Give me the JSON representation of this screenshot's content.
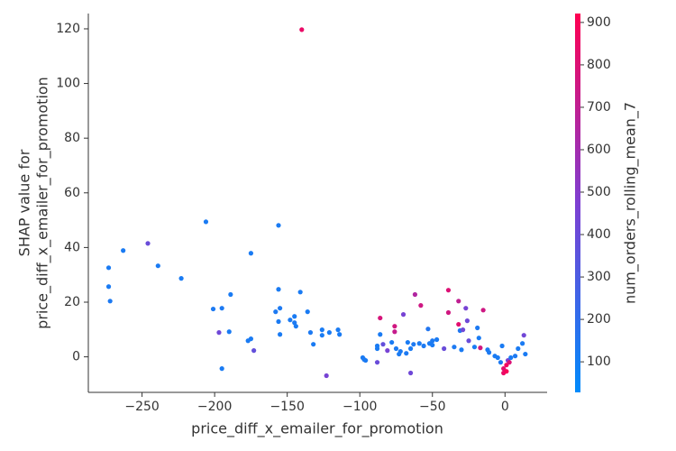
{
  "chart_data": {
    "type": "scatter",
    "xlabel": "price_diff_x_emailer_for_promotion",
    "ylabel": [
      "SHAP value for",
      "price_diff_x_emailer_for_promotion"
    ],
    "colorbar_label": "num_orders_rolling_mean_7",
    "colormap": [
      "#008bfb",
      "#7e3fd2",
      "#ff0052"
    ],
    "xlim": [
      -287,
      29
    ],
    "ylim": [
      -13,
      125.6
    ],
    "clim": [
      28,
      921
    ],
    "xticks": [
      {
        "value": -250,
        "label": "−250"
      },
      {
        "value": -200,
        "label": "−200"
      },
      {
        "value": -150,
        "label": "−150"
      },
      {
        "value": -100,
        "label": "−100"
      },
      {
        "value": -50,
        "label": "−50"
      },
      0
    ],
    "yticks": [
      0,
      20,
      40,
      60,
      80,
      100,
      120
    ],
    "cticks": [
      100,
      200,
      300,
      400,
      500,
      600,
      700,
      800,
      900
    ],
    "x": [
      -140,
      -273,
      -273,
      -272,
      -263,
      -246,
      -239,
      -223,
      -206,
      -201,
      -195,
      -197,
      -195,
      -190,
      -189,
      -175,
      -175,
      -173,
      -177,
      -156,
      -156,
      -158,
      -156,
      -155,
      -155,
      -148,
      -145,
      -145,
      -144,
      -141,
      -136,
      -134,
      -132,
      -126,
      -126,
      -123,
      -121,
      -115,
      -114,
      -98,
      -97,
      -96,
      -88,
      -88,
      -88,
      -86,
      -86,
      -84,
      -81,
      -78,
      -76,
      -76,
      -75,
      -73,
      -72,
      -70,
      -68,
      -67,
      -65,
      -65,
      -63,
      -62,
      -59,
      -58,
      -56,
      -53,
      -52,
      -50,
      -50,
      -47,
      -42,
      -39,
      -39,
      -35,
      -32,
      -32,
      -31,
      -30,
      -29,
      -27,
      -26,
      -25,
      -21,
      -19,
      -18,
      -17,
      -15,
      -12,
      -11,
      -7,
      -5,
      -3,
      -2,
      -1,
      -1,
      1,
      1,
      2,
      3,
      4,
      7,
      9,
      12,
      13,
      14
    ],
    "values": [
      119.7,
      32.6,
      25.7,
      20.4,
      38.9,
      41.5,
      33.3,
      28.7,
      49.4,
      17.5,
      17.8,
      8.9,
      -4.3,
      9.2,
      22.8,
      37.9,
      6.6,
      2.3,
      5.9,
      48.1,
      24.7,
      16.5,
      12.9,
      17.8,
      8.2,
      13.5,
      14.8,
      12.5,
      11.2,
      23.7,
      16.5,
      8.9,
      4.6,
      7.9,
      9.9,
      -6.9,
      8.9,
      9.9,
      8.2,
      -0.3,
      -1.0,
      -1.3,
      4.0,
      3.0,
      -2.0,
      14.2,
      8.2,
      4.6,
      2.3,
      5.3,
      11.2,
      9.2,
      3.0,
      1.0,
      2.0,
      15.5,
      1.3,
      5.3,
      -5.9,
      3.0,
      4.6,
      22.8,
      4.9,
      18.8,
      4.0,
      10.2,
      4.9,
      5.9,
      4.3,
      6.3,
      3.0,
      24.4,
      16.2,
      3.6,
      20.4,
      11.9,
      9.6,
      2.6,
      9.9,
      17.8,
      13.2,
      5.9,
      3.6,
      10.6,
      6.9,
      3.3,
      17.1,
      2.6,
      1.6,
      0.3,
      -0.3,
      -2.0,
      4.0,
      -5.9,
      -4.3,
      -5.3,
      -3.0,
      -1.3,
      -2.0,
      -0.3,
      0.3,
      3.0,
      4.9,
      7.9,
      1.0
    ],
    "color_values": [
      850,
      120,
      120,
      130,
      120,
      400,
      120,
      120,
      120,
      130,
      130,
      420,
      120,
      120,
      120,
      120,
      120,
      380,
      120,
      120,
      120,
      130,
      120,
      130,
      120,
      120,
      120,
      130,
      120,
      120,
      120,
      130,
      120,
      120,
      120,
      450,
      120,
      120,
      120,
      120,
      130,
      120,
      120,
      120,
      400,
      780,
      120,
      380,
      450,
      120,
      760,
      720,
      130,
      120,
      120,
      450,
      130,
      120,
      420,
      120,
      130,
      650,
      120,
      750,
      130,
      150,
      120,
      130,
      120,
      120,
      400,
      800,
      760,
      130,
      700,
      820,
      150,
      120,
      420,
      450,
      420,
      400,
      120,
      130,
      120,
      760,
      750,
      120,
      130,
      120,
      120,
      130,
      120,
      850,
      820,
      900,
      880,
      450,
      800,
      120,
      130,
      120,
      120,
      430,
      120
    ]
  }
}
